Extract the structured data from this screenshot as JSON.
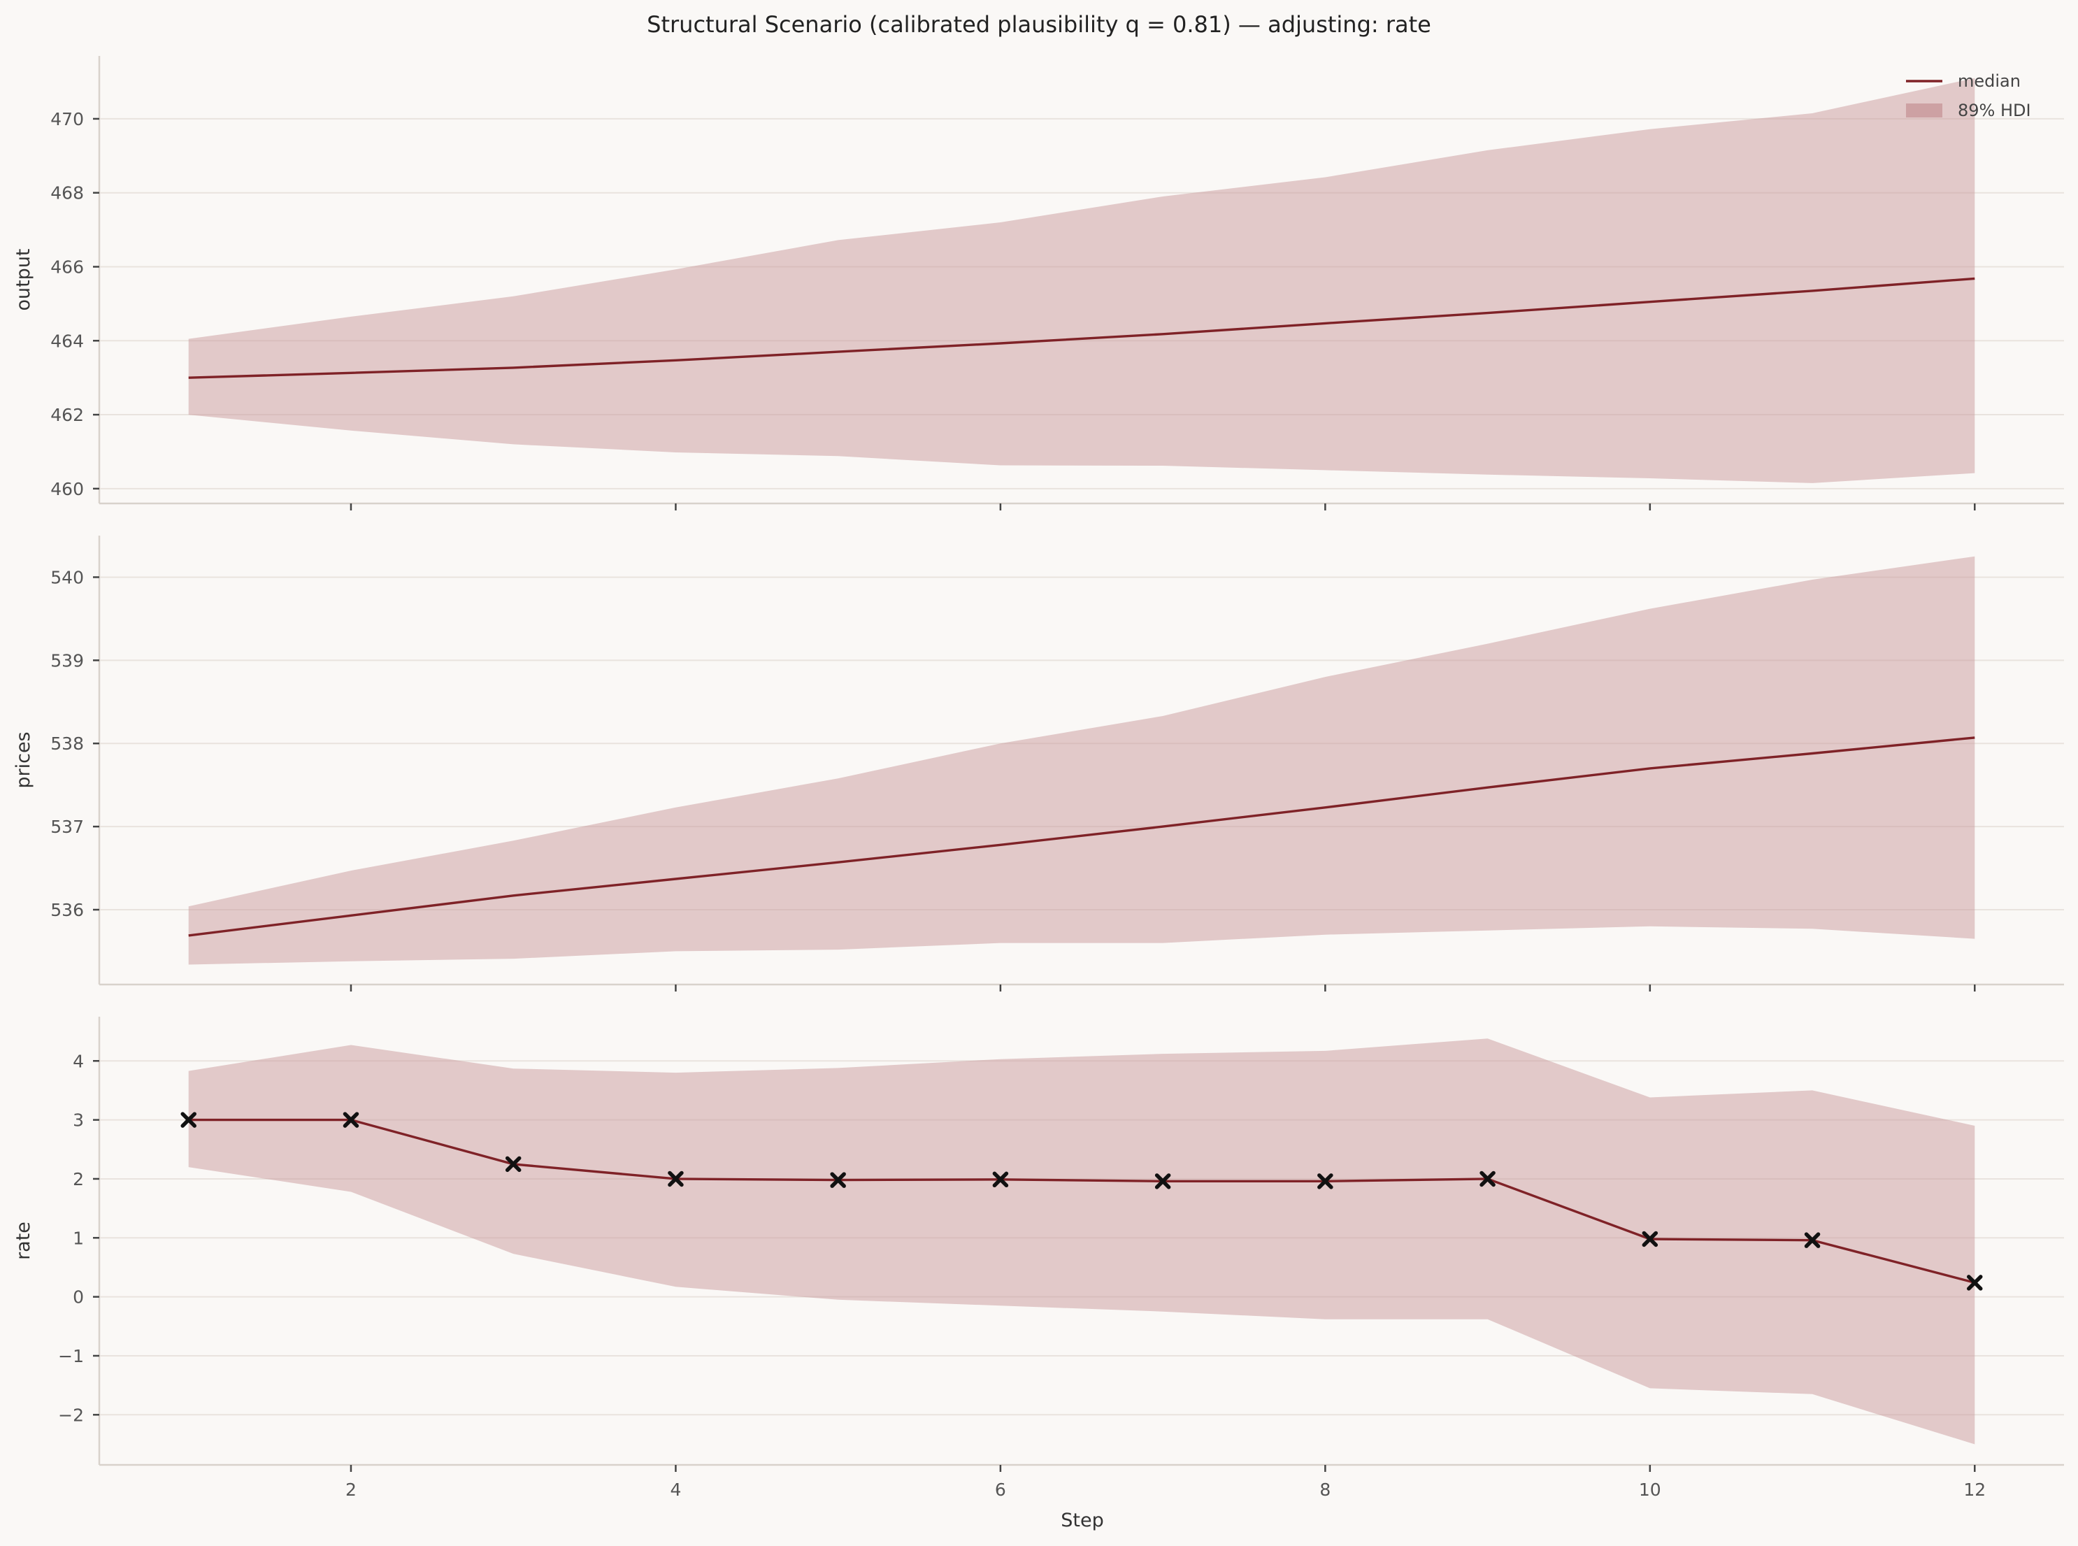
{
  "chart_data": {
    "type": "line",
    "title": "Structural Scenario (calibrated plausibility q = 0.81) — adjusting: rate",
    "xlabel": "Step",
    "x": [
      1,
      2,
      3,
      4,
      5,
      6,
      7,
      8,
      9,
      10,
      11,
      12
    ],
    "xlim": [
      0.45,
      12.55
    ],
    "xticks": [
      2,
      4,
      6,
      8,
      10,
      12
    ],
    "grid": true,
    "legend": {
      "placement": "top-right",
      "entries": [
        {
          "label": "median",
          "kind": "line",
          "color": "#7f2227"
        },
        {
          "label": "89% HDI",
          "kind": "band",
          "color": "#c99a9c"
        }
      ]
    },
    "colors": {
      "median": "#7f2227",
      "band": "#c99a9c",
      "marker": "#111111"
    },
    "panels": [
      {
        "ylabel": "output",
        "ylim": [
          459.6,
          471.7
        ],
        "yticks": [
          460,
          462,
          464,
          466,
          468,
          470
        ],
        "ytick_labels": [
          "460",
          "462",
          "464",
          "466",
          "468",
          "470"
        ],
        "median": [
          463.0,
          463.13,
          463.27,
          463.47,
          463.7,
          463.93,
          464.18,
          464.47,
          464.75,
          465.05,
          465.35,
          465.68
        ],
        "hdi_low": [
          462.0,
          461.57,
          461.2,
          460.98,
          460.88,
          460.63,
          460.62,
          460.5,
          460.38,
          460.28,
          460.15,
          460.42
        ],
        "hdi_high": [
          464.05,
          464.65,
          465.2,
          465.93,
          466.72,
          467.2,
          467.9,
          468.42,
          469.15,
          469.72,
          470.15,
          471.1
        ],
        "markers": false
      },
      {
        "ylabel": "prices",
        "ylim": [
          535.1,
          540.5
        ],
        "yticks": [
          536,
          537,
          538,
          539,
          540
        ],
        "ytick_labels": [
          "536",
          "537",
          "538",
          "539",
          "540"
        ],
        "median": [
          535.69,
          535.93,
          536.17,
          536.37,
          536.57,
          536.78,
          537.0,
          537.23,
          537.47,
          537.7,
          537.88,
          538.07
        ],
        "hdi_low": [
          535.34,
          535.38,
          535.41,
          535.5,
          535.52,
          535.6,
          535.6,
          535.7,
          535.75,
          535.8,
          535.77,
          535.65
        ],
        "hdi_high": [
          536.04,
          536.47,
          536.83,
          537.23,
          537.58,
          538.0,
          538.33,
          538.8,
          539.2,
          539.62,
          539.97,
          540.25
        ],
        "markers": false
      },
      {
        "ylabel": "rate",
        "ylim": [
          -2.85,
          4.75
        ],
        "yticks": [
          -2,
          -1,
          0,
          1,
          2,
          3,
          4
        ],
        "ytick_labels": [
          "−2",
          "−1",
          "0",
          "1",
          "2",
          "3",
          "4"
        ],
        "median": [
          3.0,
          3.0,
          2.25,
          2.0,
          1.98,
          1.99,
          1.96,
          1.96,
          2.0,
          0.98,
          0.96,
          0.24
        ],
        "hdi_low": [
          2.2,
          1.78,
          0.73,
          0.17,
          -0.05,
          -0.15,
          -0.25,
          -0.38,
          -0.38,
          -1.55,
          -1.65,
          -2.5
        ],
        "hdi_high": [
          3.83,
          4.27,
          3.87,
          3.8,
          3.88,
          4.03,
          4.12,
          4.17,
          4.38,
          3.38,
          3.5,
          2.9
        ],
        "markers": true
      }
    ]
  }
}
